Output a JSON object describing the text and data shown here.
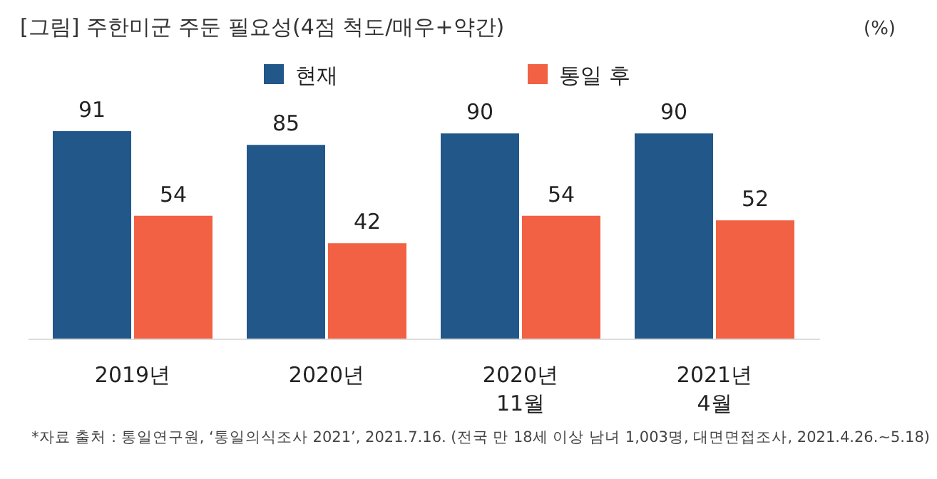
{
  "chart_data": {
    "type": "bar",
    "title": "[그림] 주한미군 주둔 필요성(4점 척도/매우+약간)",
    "categories": [
      "2019년",
      "2020년",
      "2020년\n11월",
      "2021년\n4월"
    ],
    "series": [
      {
        "name": "현재",
        "color": "#22578a",
        "values": [
          91,
          85,
          90,
          90
        ]
      },
      {
        "name": "통일 후",
        "color": "#f26143",
        "values": [
          54,
          42,
          54,
          52
        ]
      }
    ],
    "data_labels": true,
    "legend": "top",
    "annotations": [
      "(%)",
      "*자료 출처 : 통일연구원, ‘통일의식조사 2021’, 2021.7.16. (전국 만 18세 이상 남녀 1,003명, 대면면접조사, 2021.4.26.~5.18)"
    ]
  }
}
